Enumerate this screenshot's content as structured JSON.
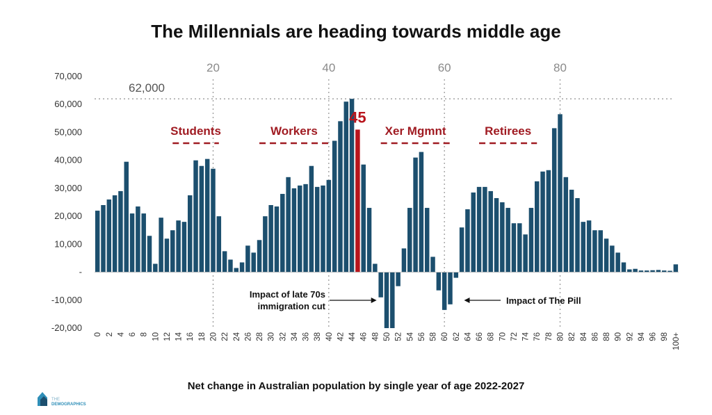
{
  "title": "The Millennials are heading towards middle age",
  "subtitle": "Net change in Australian population by single year of age 2022-2027",
  "logo": {
    "text_top": "THE",
    "text_bottom": "DEMOGRAPHICS"
  },
  "colors": {
    "bar": "#1c4f6e",
    "highlight": "#b8141c",
    "label": "#a01b22",
    "grid": "#9a9a9a"
  },
  "chart_data": {
    "type": "bar",
    "categories": [
      "0",
      "1",
      "2",
      "3",
      "4",
      "5",
      "6",
      "7",
      "8",
      "9",
      "10",
      "11",
      "12",
      "13",
      "14",
      "15",
      "16",
      "17",
      "18",
      "19",
      "20",
      "21",
      "22",
      "23",
      "24",
      "25",
      "26",
      "27",
      "28",
      "29",
      "30",
      "31",
      "32",
      "33",
      "34",
      "35",
      "36",
      "37",
      "38",
      "39",
      "40",
      "41",
      "42",
      "43",
      "44",
      "45",
      "46",
      "47",
      "48",
      "49",
      "50",
      "51",
      "52",
      "53",
      "54",
      "55",
      "56",
      "57",
      "58",
      "59",
      "60",
      "61",
      "62",
      "63",
      "64",
      "65",
      "66",
      "67",
      "68",
      "69",
      "70",
      "71",
      "72",
      "73",
      "74",
      "75",
      "76",
      "77",
      "78",
      "79",
      "80",
      "81",
      "82",
      "83",
      "84",
      "85",
      "86",
      "87",
      "88",
      "89",
      "90",
      "91",
      "92",
      "93",
      "94",
      "95",
      "96",
      "97",
      "98",
      "99",
      "100+"
    ],
    "x_tick_labels": [
      "0",
      "2",
      "4",
      "6",
      "8",
      "10",
      "12",
      "14",
      "16",
      "18",
      "20",
      "22",
      "24",
      "26",
      "28",
      "30",
      "32",
      "34",
      "36",
      "38",
      "40",
      "42",
      "44",
      "46",
      "48",
      "50",
      "52",
      "54",
      "56",
      "58",
      "60",
      "62",
      "64",
      "66",
      "68",
      "70",
      "72",
      "74",
      "76",
      "78",
      "80",
      "82",
      "84",
      "86",
      "88",
      "90",
      "92",
      "94",
      "96",
      "98",
      "100+"
    ],
    "values": [
      22000,
      24000,
      26000,
      27500,
      29000,
      39500,
      21000,
      23500,
      21000,
      13000,
      3000,
      19500,
      12000,
      15000,
      18500,
      18000,
      27500,
      40000,
      38000,
      40500,
      37000,
      20000,
      7500,
      4500,
      1500,
      3500,
      9500,
      7000,
      11500,
      20000,
      24000,
      23500,
      28000,
      34000,
      30000,
      31000,
      31500,
      38000,
      30500,
      31000,
      33000,
      47000,
      54000,
      61000,
      62000,
      51000,
      38500,
      23000,
      3000,
      -9000,
      -20000,
      -20000,
      -5000,
      8500,
      23000,
      41000,
      43000,
      23000,
      5500,
      -6500,
      -13500,
      -11500,
      -2000,
      16000,
      22500,
      28500,
      30500,
      30500,
      29000,
      26500,
      25000,
      23000,
      17500,
      17500,
      13500,
      23000,
      32500,
      36000,
      36500,
      51500,
      56500,
      34000,
      29500,
      26500,
      18000,
      18500,
      15000,
      15000,
      12000,
      9500,
      7000,
      3500,
      1000,
      1200,
      600,
      600,
      700,
      800,
      600,
      500,
      2800
    ],
    "highlight": {
      "category": "45",
      "label": "45"
    },
    "ylim": [
      -20000,
      70000
    ],
    "y_tick_labels": [
      "70,000",
      "60,000",
      "50,000",
      "40,000",
      "30,000",
      "20,000",
      "10,000",
      "-",
      "-10,000",
      "-20,000"
    ],
    "age_markers": [
      {
        "label": "20",
        "value": 20
      },
      {
        "label": "40",
        "value": 40
      },
      {
        "label": "60",
        "value": 60
      },
      {
        "label": "80",
        "value": 80
      }
    ],
    "reference_line": {
      "value": 62000,
      "label": "62,000"
    },
    "group_labels": [
      {
        "label": "Students",
        "from": 13,
        "to": 21
      },
      {
        "label": "Workers",
        "from": 28,
        "to": 40
      },
      {
        "label": "Xer Mgmnt",
        "from": 49,
        "to": 61
      },
      {
        "label": "Retirees",
        "from": 66,
        "to": 76
      }
    ],
    "annotations": [
      {
        "lines": [
          "Impact of late 70s",
          "immigration cut"
        ],
        "arrow_to": 49,
        "direction": "right"
      },
      {
        "lines": [
          "Impact of The Pill"
        ],
        "arrow_to": 61,
        "direction": "left"
      }
    ],
    "legend": "none",
    "grid": false
  }
}
